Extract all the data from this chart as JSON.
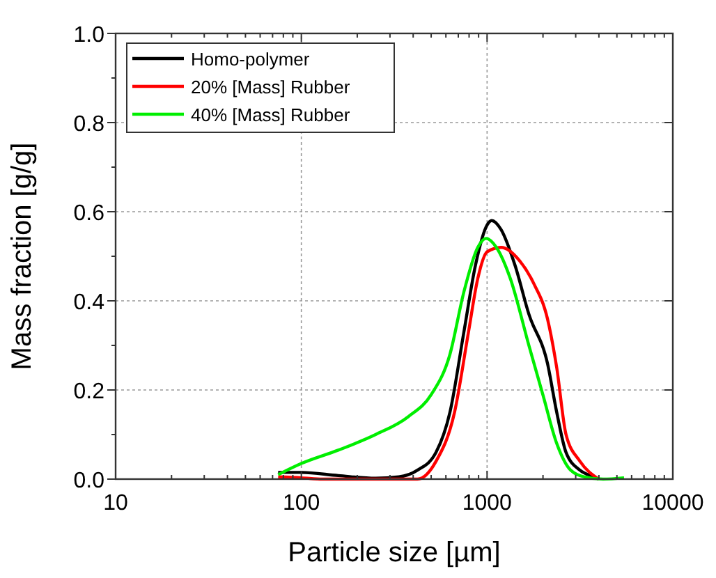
{
  "chart_data": {
    "type": "line",
    "xlabel": "Particle size [µm]",
    "ylabel": "Mass fraction [g/g]",
    "log": "x",
    "xlim": [
      10,
      10000
    ],
    "xticks": [
      10,
      100,
      1000,
      10000
    ],
    "ylim": [
      0,
      1
    ],
    "yticks": [
      {
        "value": 0,
        "label": "0.0"
      },
      {
        "value": 0.2,
        "label": "0.2"
      },
      {
        "value": 0.4,
        "label": "0.4"
      },
      {
        "value": 0.6,
        "label": "0.6"
      },
      {
        "value": 0.8,
        "label": "0.8"
      },
      {
        "value": 1,
        "label": "1.0"
      }
    ],
    "grid": true,
    "legend": "top left",
    "line_style": "solid",
    "series": [
      {
        "name": "Homo-polymer",
        "color": "#000000",
        "x": [
          75,
          100,
          158,
          251,
          335,
          422,
          531,
          631,
          750,
          866,
          1000,
          1059,
          1189,
          1413,
          1679,
          2113,
          2371,
          2661,
          3162,
          3758,
          4000
        ],
        "values": [
          0.015,
          0.015,
          0.008,
          0.002,
          0.005,
          0.02,
          0.06,
          0.15,
          0.33,
          0.48,
          0.57,
          0.58,
          0.56,
          0.48,
          0.37,
          0.26,
          0.15,
          0.06,
          0.02,
          0.005,
          0
        ]
      },
      {
        "name": "20% [Mass] Rubber",
        "color": "#ff0000",
        "x": [
          75,
          100,
          130,
          422,
          531,
          668,
          794,
          891,
          1000,
          1189,
          1496,
          1778,
          2113,
          2371,
          2661,
          3162,
          3981
        ],
        "values": [
          0.005,
          0.003,
          0,
          0,
          0.04,
          0.15,
          0.33,
          0.45,
          0.51,
          0.52,
          0.49,
          0.44,
          0.36,
          0.25,
          0.1,
          0.04,
          0
        ]
      },
      {
        "name": "40% [Mass] Rubber",
        "color": "#00ee00",
        "x": [
          75,
          100,
          158,
          251,
          376,
          501,
          631,
          750,
          891,
          988,
          1122,
          1334,
          1679,
          1995,
          2371,
          2818,
          3350,
          4217,
          5465
        ],
        "values": [
          0.01,
          0.035,
          0.065,
          0.1,
          0.14,
          0.19,
          0.28,
          0.42,
          0.52,
          0.54,
          0.52,
          0.45,
          0.3,
          0.19,
          0.08,
          0.02,
          0.005,
          0,
          0.003
        ]
      }
    ]
  }
}
